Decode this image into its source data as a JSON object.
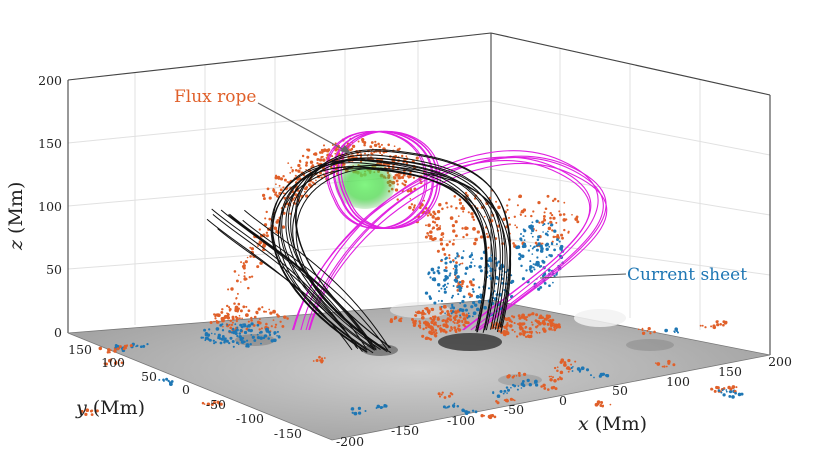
{
  "figure": {
    "axes": {
      "x": {
        "label_var": "x",
        "label_unit": " (Mm)",
        "ticks": [
          "-200",
          "-150",
          "-100",
          "-50",
          "0",
          "50",
          "100",
          "150",
          "200"
        ]
      },
      "y": {
        "label_var": "y",
        "label_unit": " (Mm)",
        "ticks": [
          "-150",
          "-100",
          "-50",
          "0",
          "50",
          "100",
          "150"
        ]
      },
      "z": {
        "label_var": "z",
        "label_unit": " (Mm)",
        "ticks": [
          "0",
          "50",
          "100",
          "150",
          "200"
        ]
      }
    },
    "annotations": {
      "flux_rope": "Flux rope",
      "current_sheet": "Current sheet"
    },
    "colors": {
      "flux_rope": "#e0602a",
      "current_sheet": "#1f77b4",
      "field_lines_black": "#111111",
      "field_lines_magenta": "#e020e0",
      "highlight_green": "#58e858",
      "magnetogram": "#b8b8b8"
    }
  }
}
